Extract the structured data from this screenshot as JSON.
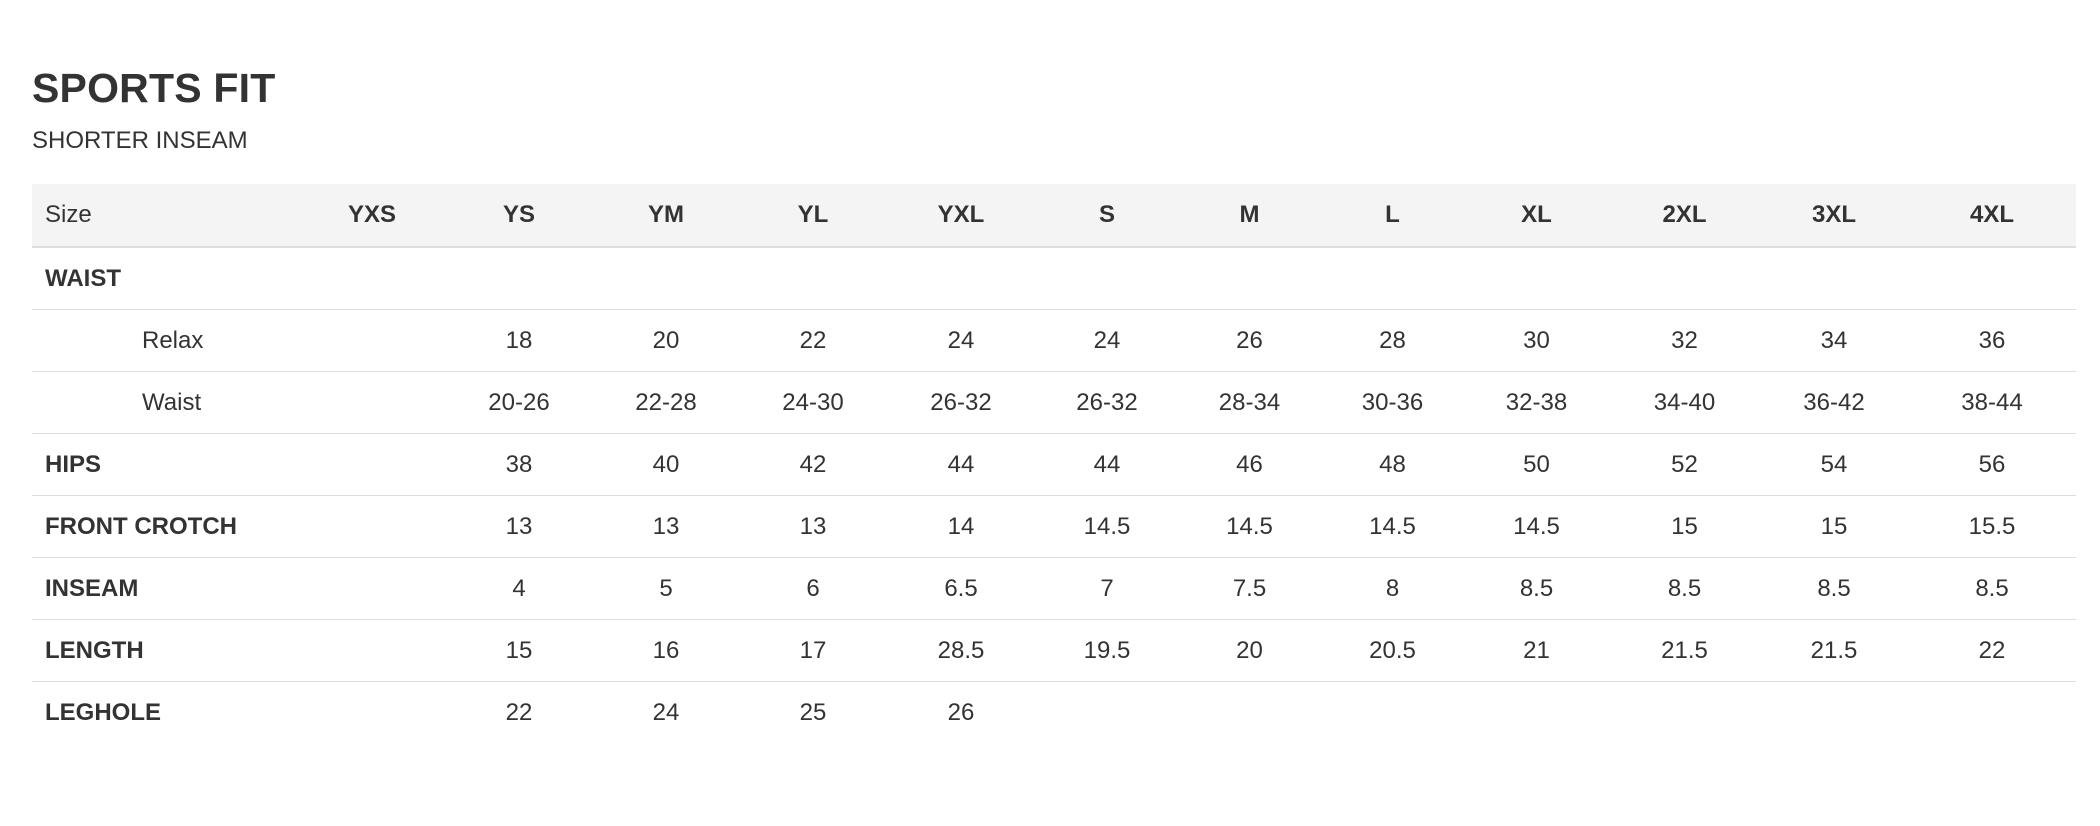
{
  "title": "SPORTS FIT",
  "subtitle": "SHORTER INSEAM",
  "header": {
    "label": "Size",
    "sizes": [
      "YXS",
      "YS",
      "YM",
      "YL",
      "YXL",
      "S",
      "M",
      "L",
      "XL",
      "2XL",
      "3XL",
      "4XL"
    ]
  },
  "rows": [
    {
      "label": "WAIST",
      "style": "section",
      "values": [
        "",
        "",
        "",
        "",
        "",
        "",
        "",
        "",
        "",
        "",
        "",
        ""
      ]
    },
    {
      "label": "Relax",
      "style": "sub",
      "values": [
        "",
        "18",
        "20",
        "22",
        "24",
        "24",
        "26",
        "28",
        "30",
        "32",
        "34",
        "36"
      ]
    },
    {
      "label": "Waist",
      "style": "sub",
      "values": [
        "",
        "20-26",
        "22-28",
        "24-30",
        "26-32",
        "26-32",
        "28-34",
        "30-36",
        "32-38",
        "34-40",
        "36-42",
        "38-44"
      ]
    },
    {
      "label": "HIPS",
      "style": "section",
      "values": [
        "",
        "38",
        "40",
        "42",
        "44",
        "44",
        "46",
        "48",
        "50",
        "52",
        "54",
        "56"
      ]
    },
    {
      "label": "FRONT CROTCH",
      "style": "section",
      "values": [
        "",
        "13",
        "13",
        "13",
        "14",
        "14.5",
        "14.5",
        "14.5",
        "14.5",
        "15",
        "15",
        "15.5"
      ]
    },
    {
      "label": "INSEAM",
      "style": "section",
      "values": [
        "",
        "4",
        "5",
        "6",
        "6.5",
        "7",
        "7.5",
        "8",
        "8.5",
        "8.5",
        "8.5",
        "8.5"
      ]
    },
    {
      "label": "LENGTH",
      "style": "section",
      "values": [
        "",
        "15",
        "16",
        "17",
        "28.5",
        "19.5",
        "20",
        "20.5",
        "21",
        "21.5",
        "21.5",
        "22"
      ]
    },
    {
      "label": "LEGHOLE",
      "style": "section",
      "values": [
        "",
        "22",
        "24",
        "25",
        "26",
        "",
        "",
        "",
        "",
        "",
        "",
        ""
      ]
    }
  ],
  "colors": {
    "text": "#333333",
    "header_background": "#f4f4f4",
    "rule": "#dddddd"
  }
}
